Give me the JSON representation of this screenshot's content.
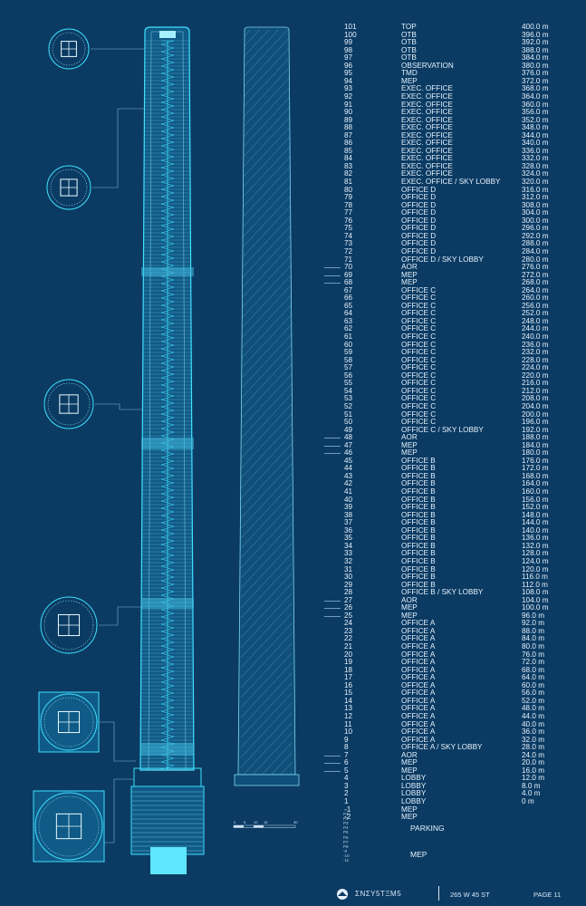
{
  "floors": [
    {
      "level": "101",
      "name": "TOP",
      "elevation": "400.0 m"
    },
    {
      "level": "100",
      "name": "OTB",
      "elevation": "396.0 m"
    },
    {
      "level": "99",
      "name": "OTB",
      "elevation": "392.0 m"
    },
    {
      "level": "98",
      "name": "OTB",
      "elevation": "388.0 m"
    },
    {
      "level": "97",
      "name": "OTB",
      "elevation": "384.0 m"
    },
    {
      "level": "96",
      "name": "OBSERVATION",
      "elevation": "380.0 m"
    },
    {
      "level": "95",
      "name": "TMD",
      "elevation": "376.0 m"
    },
    {
      "level": "94",
      "name": "MEP",
      "elevation": "372.0 m"
    },
    {
      "level": "93",
      "name": "EXEC. OFFICE",
      "elevation": "368.0 m"
    },
    {
      "level": "92",
      "name": "EXEC. OFFICE",
      "elevation": "364.0 m"
    },
    {
      "level": "91",
      "name": "EXEC. OFFICE",
      "elevation": "360.0 m"
    },
    {
      "level": "90",
      "name": "EXEC. OFFICE",
      "elevation": "356.0 m"
    },
    {
      "level": "89",
      "name": "EXEC. OFFICE",
      "elevation": "352.0 m"
    },
    {
      "level": "88",
      "name": "EXEC. OFFICE",
      "elevation": "348.0 m"
    },
    {
      "level": "87",
      "name": "EXEC. OFFICE",
      "elevation": "344.0 m"
    },
    {
      "level": "86",
      "name": "EXEC. OFFICE",
      "elevation": "340.0 m"
    },
    {
      "level": "85",
      "name": "EXEC. OFFICE",
      "elevation": "336.0 m"
    },
    {
      "level": "84",
      "name": "EXEC. OFFICE",
      "elevation": "332.0 m"
    },
    {
      "level": "83",
      "name": "EXEC. OFFICE",
      "elevation": "328.0 m"
    },
    {
      "level": "82",
      "name": "EXEC. OFFICE",
      "elevation": "324.0 m"
    },
    {
      "level": "81",
      "name": "EXEC. OFFICE / SKY LOBBY",
      "elevation": "320.0 m"
    },
    {
      "level": "80",
      "name": "OFFICE D",
      "elevation": "316.0 m"
    },
    {
      "level": "79",
      "name": "OFFICE D",
      "elevation": "312.0 m"
    },
    {
      "level": "78",
      "name": "OFFICE D",
      "elevation": "308.0 m"
    },
    {
      "level": "77",
      "name": "OFFICE D",
      "elevation": "304.0 m"
    },
    {
      "level": "76",
      "name": "OFFICE D",
      "elevation": "300.0 m"
    },
    {
      "level": "75",
      "name": "OFFICE D",
      "elevation": "296.0 m"
    },
    {
      "level": "74",
      "name": "OFFICE D",
      "elevation": "292.0 m"
    },
    {
      "level": "73",
      "name": "OFFICE D",
      "elevation": "288.0 m"
    },
    {
      "level": "72",
      "name": "OFFICE D",
      "elevation": "284.0 m"
    },
    {
      "level": "71",
      "name": "OFFICE D / SKY LOBBY",
      "elevation": "280.0 m"
    },
    {
      "level": "70",
      "name": "AOR",
      "elevation": "276.0 m"
    },
    {
      "level": "69",
      "name": "MEP",
      "elevation": "272.0 m"
    },
    {
      "level": "68",
      "name": "MEP",
      "elevation": "268.0 m"
    },
    {
      "level": "67",
      "name": "OFFICE C",
      "elevation": "264.0 m"
    },
    {
      "level": "66",
      "name": "OFFICE C",
      "elevation": "260.0 m"
    },
    {
      "level": "65",
      "name": "OFFICE C",
      "elevation": "256.0 m"
    },
    {
      "level": "64",
      "name": "OFFICE C",
      "elevation": "252.0 m"
    },
    {
      "level": "63",
      "name": "OFFICE C",
      "elevation": "248.0 m"
    },
    {
      "level": "62",
      "name": "OFFICE C",
      "elevation": "244.0 m"
    },
    {
      "level": "61",
      "name": "OFFICE C",
      "elevation": "240.0 m"
    },
    {
      "level": "60",
      "name": "OFFICE C",
      "elevation": "236.0 m"
    },
    {
      "level": "59",
      "name": "OFFICE C",
      "elevation": "232.0 m"
    },
    {
      "level": "58",
      "name": "OFFICE C",
      "elevation": "228.0 m"
    },
    {
      "level": "57",
      "name": "OFFICE C",
      "elevation": "224.0 m"
    },
    {
      "level": "56",
      "name": "OFFICE C",
      "elevation": "220.0 m"
    },
    {
      "level": "55",
      "name": "OFFICE C",
      "elevation": "216.0 m"
    },
    {
      "level": "54",
      "name": "OFFICE C",
      "elevation": "212.0 m"
    },
    {
      "level": "53",
      "name": "OFFICE C",
      "elevation": "208.0 m"
    },
    {
      "level": "52",
      "name": "OFFICE C",
      "elevation": "204.0 m"
    },
    {
      "level": "51",
      "name": "OFFICE C",
      "elevation": "200.0 m"
    },
    {
      "level": "50",
      "name": "OFFICE C",
      "elevation": "196.0 m"
    },
    {
      "level": "49",
      "name": "OFFICE C / SKY LOBBY",
      "elevation": "192.0 m"
    },
    {
      "level": "48",
      "name": "AOR",
      "elevation": "188.0 m"
    },
    {
      "level": "47",
      "name": "MEP",
      "elevation": "184.0 m"
    },
    {
      "level": "46",
      "name": "MEP",
      "elevation": "180.0 m"
    },
    {
      "level": "45",
      "name": "OFFICE B",
      "elevation": "176.0 m"
    },
    {
      "level": "44",
      "name": "OFFICE B",
      "elevation": "172.0 m"
    },
    {
      "level": "43",
      "name": "OFFICE B",
      "elevation": "168.0 m"
    },
    {
      "level": "42",
      "name": "OFFICE B",
      "elevation": "164.0 m"
    },
    {
      "level": "41",
      "name": "OFFICE B",
      "elevation": "160.0 m"
    },
    {
      "level": "40",
      "name": "OFFICE B",
      "elevation": "156.0 m"
    },
    {
      "level": "39",
      "name": "OFFICE B",
      "elevation": "152.0 m"
    },
    {
      "level": "38",
      "name": "OFFICE B",
      "elevation": "148.0 m"
    },
    {
      "level": "37",
      "name": "OFFICE B",
      "elevation": "144.0 m"
    },
    {
      "level": "36",
      "name": "OFFICE B",
      "elevation": "140.0 m"
    },
    {
      "level": "35",
      "name": "OFFICE B",
      "elevation": "136.0 m"
    },
    {
      "level": "34",
      "name": "OFFICE B",
      "elevation": "132.0 m"
    },
    {
      "level": "33",
      "name": "OFFICE B",
      "elevation": "128.0 m"
    },
    {
      "level": "32",
      "name": "OFFICE B",
      "elevation": "124.0 m"
    },
    {
      "level": "31",
      "name": "OFFICE B",
      "elevation": "120.0 m"
    },
    {
      "level": "30",
      "name": "OFFICE B",
      "elevation": "116.0 m"
    },
    {
      "level": "29",
      "name": "OFFICE B",
      "elevation": "112.0 m"
    },
    {
      "level": "28",
      "name": "OFFICE B / SKY LOBBY",
      "elevation": "108.0 m"
    },
    {
      "level": "27",
      "name": "AOR",
      "elevation": "104.0 m"
    },
    {
      "level": "26",
      "name": "MEP",
      "elevation": "100.0 m"
    },
    {
      "level": "25",
      "name": "MEP",
      "elevation": "96.0 m"
    },
    {
      "level": "24",
      "name": "OFFICE A",
      "elevation": "92.0 m"
    },
    {
      "level": "23",
      "name": "OFFICE A",
      "elevation": "88.0 m"
    },
    {
      "level": "22",
      "name": "OFFICE A",
      "elevation": "84.0 m"
    },
    {
      "level": "21",
      "name": "OFFICE A",
      "elevation": "80.0 m"
    },
    {
      "level": "20",
      "name": "OFFICE A",
      "elevation": "76.0 m"
    },
    {
      "level": "19",
      "name": "OFFICE A",
      "elevation": "72.0 m"
    },
    {
      "level": "18",
      "name": "OFFICE A",
      "elevation": "68.0 m"
    },
    {
      "level": "17",
      "name": "OFFICE A",
      "elevation": "64.0 m"
    },
    {
      "level": "16",
      "name": "OFFICE A",
      "elevation": "60.0 m"
    },
    {
      "level": "15",
      "name": "OFFICE A",
      "elevation": "56.0 m"
    },
    {
      "level": "14",
      "name": "OFFICE A",
      "elevation": "52.0 m"
    },
    {
      "level": "13",
      "name": "OFFICE A",
      "elevation": "48.0 m"
    },
    {
      "level": "12",
      "name": "OFFICE A",
      "elevation": "44.0 m"
    },
    {
      "level": "11",
      "name": "OFFICE A",
      "elevation": "40.0 m"
    },
    {
      "level": "10",
      "name": "OFFICE A",
      "elevation": "36.0 m"
    },
    {
      "level": "9",
      "name": "OFFICE A",
      "elevation": "32.0 m"
    },
    {
      "level": "8",
      "name": "OFFICE A / SKY LOBBY",
      "elevation": "28.0 m"
    },
    {
      "level": "7",
      "name": "AOR",
      "elevation": "24.0 m"
    },
    {
      "level": "6",
      "name": "MEP",
      "elevation": "20.0 m"
    },
    {
      "level": "5",
      "name": "MEP",
      "elevation": "16.0 m"
    },
    {
      "level": "4",
      "name": "LOBBY",
      "elevation": "12.0 m"
    },
    {
      "level": "3",
      "name": "LOBBY",
      "elevation": "8.0 m"
    },
    {
      "level": "2",
      "name": "LOBBY",
      "elevation": "4.0 m"
    },
    {
      "level": "1",
      "name": "LOBBY",
      "elevation": "0 m"
    },
    {
      "level": "-1",
      "name": "MEP",
      "elevation": ""
    },
    {
      "level": "-2",
      "name": "MEP",
      "elevation": ""
    }
  ],
  "highlight_levels": [
    "70",
    "69",
    "68",
    "48",
    "47",
    "46",
    "27",
    "26",
    "25",
    "7",
    "6",
    "5"
  ],
  "basement": {
    "levels": [
      "P1",
      "P2",
      "P3",
      "P4",
      "P5",
      "P6",
      "P7",
      "P8",
      "-9",
      "-10",
      "-11"
    ],
    "parking_label": "PARKING",
    "mep_label": "MEP"
  },
  "scale_bar": {
    "ticks": [
      "0",
      "5",
      "10",
      "15",
      "30"
    ]
  },
  "footer": {
    "logo_text": "ΣΝΣΥ5ΤΞΜ5",
    "address": "265 W 45 ST",
    "page": "PAGE 11"
  },
  "colors": {
    "background": "#0b3b63",
    "line": "#3fe0ff",
    "line_dim": "#7fd8f0",
    "text": "#e6f1fb"
  }
}
